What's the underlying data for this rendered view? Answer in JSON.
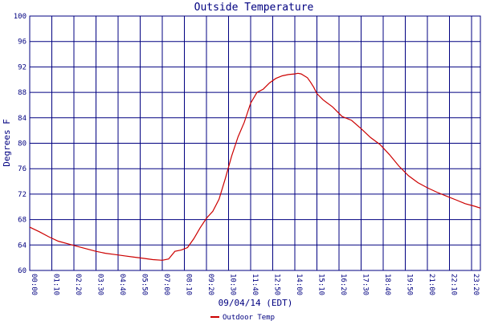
{
  "chart_data": {
    "type": "line",
    "title": "Outside Temperature",
    "xlabel": "09/04/14 (EDT)",
    "ylabel": "Degrees F",
    "ylim": [
      60,
      100
    ],
    "yticks": [
      60,
      64,
      68,
      72,
      76,
      80,
      84,
      88,
      92,
      96,
      100
    ],
    "xticks": [
      "00:00",
      "01:10",
      "02:20",
      "03:30",
      "04:40",
      "05:50",
      "07:00",
      "08:10",
      "09:20",
      "10:30",
      "11:40",
      "12:50",
      "14:00",
      "15:10",
      "16:20",
      "17:30",
      "18:40",
      "19:50",
      "21:00",
      "22:10",
      "23:20",
      "23:48"
    ],
    "xlim_minutes": [
      0,
      1428
    ],
    "grid": true,
    "legend_position": "bottom-left",
    "colors": {
      "background": "#ffffff",
      "grid": "#000080",
      "text": "#000080",
      "series": "#cc0000"
    },
    "series": [
      {
        "name": "Outdoor Temp",
        "x": [
          0,
          30,
          60,
          90,
          120,
          150,
          180,
          210,
          240,
          270,
          300,
          330,
          360,
          390,
          420,
          440,
          460,
          480,
          500,
          520,
          540,
          560,
          580,
          600,
          620,
          640,
          660,
          680,
          700,
          720,
          740,
          760,
          780,
          800,
          820,
          840,
          850,
          860,
          870,
          880,
          890,
          900,
          910,
          930,
          960,
          990,
          1020,
          1050,
          1080,
          1110,
          1140,
          1170,
          1200,
          1230,
          1260,
          1290,
          1320,
          1350,
          1380,
          1410,
          1428
        ],
        "values": [
          66.8,
          66.1,
          65.3,
          64.6,
          64.2,
          63.8,
          63.4,
          63.0,
          62.7,
          62.5,
          62.3,
          62.1,
          61.9,
          61.7,
          61.6,
          61.8,
          63.0,
          63.2,
          63.6,
          65.0,
          66.7,
          68.2,
          69.3,
          71.2,
          74.5,
          78.0,
          81.0,
          83.3,
          86.3,
          88.0,
          88.5,
          89.5,
          90.2,
          90.6,
          90.8,
          90.9,
          91.0,
          90.9,
          90.6,
          90.3,
          89.6,
          88.8,
          87.8,
          86.8,
          85.7,
          84.2,
          83.6,
          82.3,
          80.9,
          79.8,
          78.2,
          76.4,
          74.9,
          73.8,
          73.0,
          72.3,
          71.7,
          71.1,
          70.5,
          70.1,
          69.8
        ]
      }
    ]
  }
}
